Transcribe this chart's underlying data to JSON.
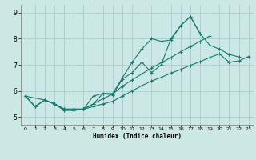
{
  "title": "",
  "xlabel": "Humidex (Indice chaleur)",
  "background_color": "#cce8e4",
  "grid_color": "#aacccc",
  "line_color": "#1a7a6e",
  "xlim": [
    -0.5,
    23.5
  ],
  "ylim": [
    4.7,
    9.3
  ],
  "xticks": [
    0,
    1,
    2,
    3,
    4,
    5,
    6,
    7,
    8,
    9,
    10,
    11,
    12,
    13,
    14,
    15,
    16,
    17,
    18,
    19,
    20,
    21,
    22,
    23
  ],
  "yticks": [
    5,
    6,
    7,
    8,
    9
  ],
  "series": [
    {
      "x": [
        0,
        1,
        2,
        3,
        4,
        5,
        6,
        7,
        8,
        9,
        10,
        11,
        12,
        13,
        14,
        15,
        16,
        17,
        18,
        19,
        20,
        21,
        22
      ],
      "y": [
        5.8,
        5.4,
        5.65,
        5.5,
        5.3,
        5.3,
        5.3,
        5.8,
        5.9,
        5.85,
        6.45,
        6.7,
        7.1,
        6.7,
        7.0,
        8.0,
        8.5,
        8.85,
        8.2,
        7.75,
        7.6,
        7.4,
        7.3
      ]
    },
    {
      "x": [
        0,
        1,
        2,
        3,
        4,
        5,
        6,
        7,
        8,
        9,
        10,
        11,
        12,
        13,
        14,
        15,
        16,
        17,
        18,
        19,
        20,
        21,
        22,
        23
      ],
      "y": [
        5.8,
        5.4,
        5.65,
        5.5,
        5.3,
        5.3,
        5.3,
        5.4,
        5.5,
        5.6,
        5.8,
        6.0,
        6.2,
        6.38,
        6.52,
        6.68,
        6.82,
        6.98,
        7.12,
        7.28,
        7.42,
        7.1,
        7.15,
        7.32
      ]
    },
    {
      "x": [
        0,
        2,
        3,
        4,
        5,
        6,
        7,
        8,
        9,
        10,
        11,
        12,
        13,
        14,
        15,
        16,
        17,
        18,
        19
      ],
      "y": [
        5.8,
        5.65,
        5.5,
        5.3,
        5.3,
        5.3,
        5.5,
        5.7,
        5.88,
        6.18,
        6.42,
        6.65,
        6.88,
        7.08,
        7.28,
        7.5,
        7.7,
        7.9,
        8.1
      ]
    },
    {
      "x": [
        0,
        1,
        2,
        3,
        4,
        5,
        6,
        7,
        8,
        9,
        10,
        11,
        12,
        13,
        14,
        15,
        16,
        17,
        18
      ],
      "y": [
        5.8,
        5.4,
        5.65,
        5.5,
        5.25,
        5.25,
        5.3,
        5.5,
        5.9,
        5.9,
        6.5,
        7.1,
        7.6,
        8.0,
        7.9,
        7.95,
        8.5,
        8.85,
        8.2
      ]
    }
  ]
}
